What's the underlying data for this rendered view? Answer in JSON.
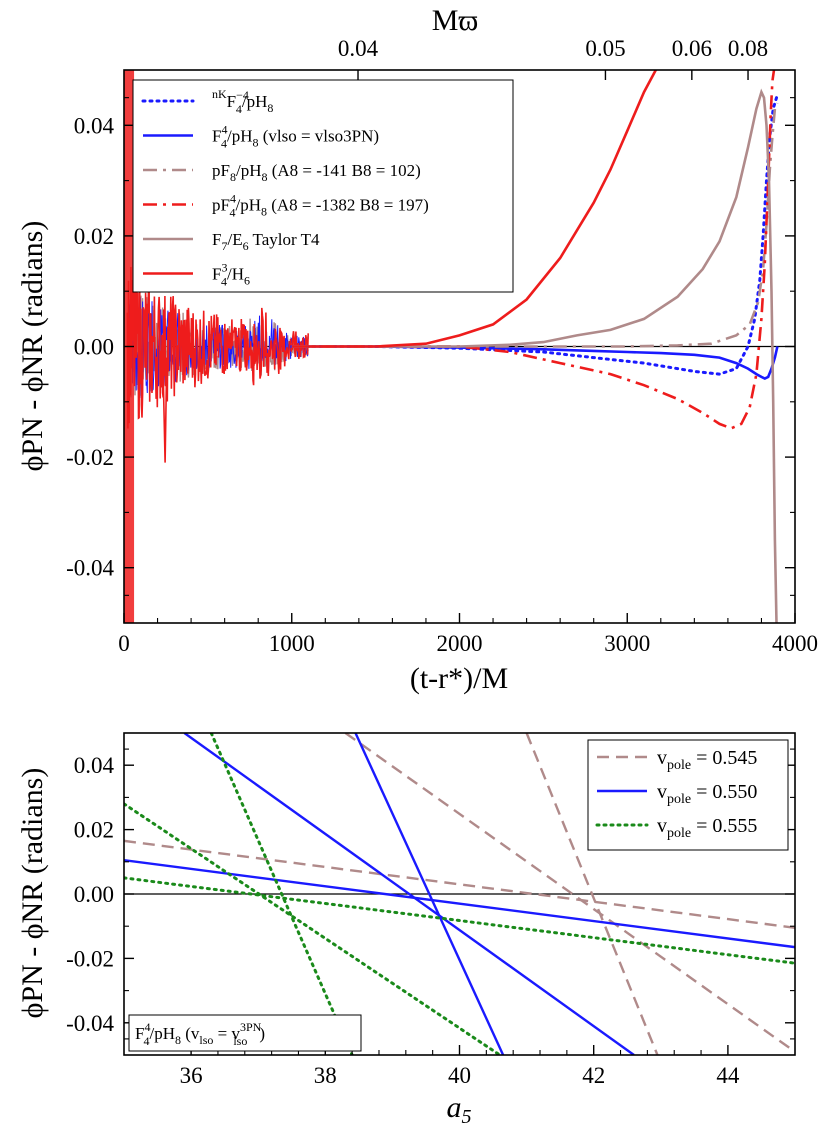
{
  "chart_data": [
    {
      "type": "line",
      "title": "",
      "xlabel": "(t-r*)/M",
      "ylabel": "ϕPN - ϕNR (radians)",
      "top_axis_label": "Mϖ",
      "top_ticks": [
        {
          "label": "0.04",
          "x": 1395
        },
        {
          "label": "0.05",
          "x": 2870
        },
        {
          "label": "0.06",
          "x": 3385
        },
        {
          "label": "0.08",
          "x": 3720
        }
      ],
      "xlim": [
        0,
        4000
      ],
      "ylim": [
        -0.05,
        0.05
      ],
      "xticks": [
        0,
        1000,
        2000,
        3000,
        4000
      ],
      "xtick_labels": [
        "0",
        "1000",
        "2000",
        "3000",
        "4000"
      ],
      "yticks": [
        -0.04,
        -0.02,
        0.0,
        0.02,
        0.04
      ],
      "ytick_labels": [
        "-0.04",
        "-0.02",
        "0.00",
        "0.02",
        "0.04"
      ],
      "legend_position": "top-left",
      "series": [
        {
          "name": "nK F̄4/pH8",
          "legend": {
            "pre_sup": "nK",
            "main": "F",
            "main_sup": "−4",
            "main_sub": "4",
            "tail": "/pH",
            "tail_sub": "8",
            "extra": ""
          },
          "color": "#1a1aff",
          "style": "dotted",
          "x": [
            1000,
            1500,
            2000,
            2500,
            2800,
            3100,
            3400,
            3550,
            3650,
            3720,
            3760,
            3790,
            3810,
            3830,
            3850,
            3870,
            3890
          ],
          "y": [
            0.0,
            0.0,
            -0.0003,
            -0.001,
            -0.002,
            -0.003,
            -0.0045,
            -0.005,
            -0.004,
            0.0,
            0.005,
            0.012,
            0.02,
            0.03,
            0.038,
            0.043,
            0.045
          ]
        },
        {
          "name": "F44/pH8 (vlso = vlso3PN)",
          "legend": {
            "pre_sup": "",
            "main": "F",
            "main_sup": "4",
            "main_sub": "4",
            "tail": "/pH",
            "tail_sub": "8",
            "extra": " (vlso = vlso3PN)"
          },
          "color": "#1a1aff",
          "style": "solid",
          "x": [
            1000,
            1500,
            2000,
            2500,
            2800,
            3000,
            3200,
            3400,
            3550,
            3650,
            3720,
            3770,
            3800,
            3820,
            3840,
            3860,
            3880,
            3895
          ],
          "y": [
            0.0,
            0.0,
            -0.0002,
            -0.0005,
            -0.0008,
            -0.001,
            -0.0012,
            -0.0015,
            -0.002,
            -0.003,
            -0.004,
            -0.005,
            -0.0055,
            -0.0058,
            -0.0055,
            -0.004,
            -0.002,
            0.0
          ]
        },
        {
          "name": "pF8/pH8 (A8 = -141 B8 = 102)",
          "legend": {
            "pre_sup": "",
            "main": "pF",
            "main_sup": "",
            "main_sub": "8",
            "tail": "/pH",
            "tail_sub": "8",
            "extra": " (A8 = -141 B8 = 102)"
          },
          "color": "#b08a8a",
          "style": "dashdot",
          "x": [
            1000,
            2000,
            2500,
            3000,
            3300,
            3500,
            3650,
            3730,
            3780,
            3810,
            3830,
            3850,
            3865,
            3880,
            3895
          ],
          "y": [
            0.0,
            0.0,
            0.0,
            0.0,
            0.0002,
            0.0005,
            0.002,
            0.004,
            0.008,
            0.014,
            0.022,
            0.032,
            0.038,
            0.043,
            0.044
          ]
        },
        {
          "name": "pF44/pH8 (A8 = -1382 B8 = 197)",
          "legend": {
            "pre_sup": "",
            "main": "pF",
            "main_sup": "4",
            "main_sub": "4",
            "tail": "/pH",
            "tail_sub": "8",
            "extra": " (A8 = -1382 B8 = 197)"
          },
          "color": "#ee1c1c",
          "style": "dashdot",
          "x": [
            1000,
            2000,
            2300,
            2600,
            2900,
            3100,
            3300,
            3450,
            3550,
            3620,
            3680,
            3730,
            3770,
            3800,
            3820,
            3840,
            3855,
            3865,
            3875
          ],
          "y": [
            0.0,
            0.0,
            -0.001,
            -0.003,
            -0.005,
            -0.007,
            -0.0095,
            -0.012,
            -0.014,
            -0.0148,
            -0.014,
            -0.011,
            -0.005,
            0.005,
            0.015,
            0.03,
            0.042,
            0.048,
            0.05
          ]
        },
        {
          "name": "F7/E6 Taylor T4",
          "legend": {
            "pre_sup": "",
            "main": "F",
            "main_sup": "",
            "main_sub": "7",
            "tail": "/E",
            "tail_sub": "6",
            "extra": " Taylor T4"
          },
          "color": "#b08a8a",
          "style": "solid",
          "x": [
            1000,
            2000,
            2300,
            2500,
            2700,
            2900,
            3100,
            3300,
            3450,
            3550,
            3650,
            3720,
            3770,
            3800,
            3815,
            3830,
            3845,
            3860,
            3870,
            3880,
            3890
          ],
          "y": [
            0.0,
            0.0,
            0.0003,
            0.0008,
            0.002,
            0.003,
            0.005,
            0.009,
            0.014,
            0.019,
            0.027,
            0.036,
            0.043,
            0.046,
            0.045,
            0.04,
            0.03,
            0.01,
            -0.01,
            -0.035,
            -0.05
          ]
        },
        {
          "name": "F43/H6",
          "legend": {
            "pre_sup": "",
            "main": "F",
            "main_sup": "3",
            "main_sub": "4",
            "tail": "/H",
            "tail_sub": "6",
            "extra": ""
          },
          "color": "#ee1c1c",
          "style": "solid",
          "x": [
            1000,
            1500,
            1800,
            2000,
            2200,
            2400,
            2600,
            2700,
            2800,
            2900,
            3000,
            3100,
            3170
          ],
          "y": [
            0.0,
            0.0,
            0.0005,
            0.002,
            0.004,
            0.0085,
            0.016,
            0.021,
            0.026,
            0.032,
            0.039,
            0.046,
            0.05
          ]
        }
      ]
    },
    {
      "type": "line",
      "title": "",
      "xlabel": "a5",
      "ylabel": "ϕPN - ϕNR (radians)",
      "xlim": [
        35,
        45
      ],
      "ylim": [
        -0.05,
        0.05
      ],
      "xticks": [
        36,
        38,
        40,
        42,
        44
      ],
      "xtick_labels": [
        "36",
        "38",
        "40",
        "42",
        "44"
      ],
      "yticks": [
        -0.04,
        -0.02,
        0.0,
        0.02,
        0.04
      ],
      "ytick_labels": [
        "-0.04",
        "-0.02",
        "0.00",
        "0.02",
        "0.04"
      ],
      "legend_position": "top-right",
      "annotation": "F44/pH8 (vlso = vlso3PN)",
      "series": [
        {
          "name": "vpole = 0.545",
          "legend_value": " = 0.545",
          "color": "#b08a8a",
          "style": "dashed",
          "lines": [
            {
              "x": [
                35,
                45
              ],
              "y": [
                0.0165,
                -0.0105
              ]
            },
            {
              "x": [
                38.3,
                45
              ],
              "y": [
                0.05,
                -0.049
              ]
            },
            {
              "x": [
                41.0,
                42.95
              ],
              "y": [
                0.05,
                -0.05
              ]
            }
          ]
        },
        {
          "name": "vpole = 0.550",
          "legend_value": " = 0.550",
          "color": "#1a1aff",
          "style": "solid",
          "lines": [
            {
              "x": [
                35,
                45
              ],
              "y": [
                0.0105,
                -0.0165
              ]
            },
            {
              "x": [
                35.9,
                42.6
              ],
              "y": [
                0.05,
                -0.05
              ]
            },
            {
              "x": [
                38.45,
                40.65
              ],
              "y": [
                0.05,
                -0.05
              ]
            }
          ]
        },
        {
          "name": "vpole = 0.555",
          "legend_value": " = 0.555",
          "color": "#1a8a1a",
          "style": "dotted",
          "lines": [
            {
              "x": [
                35,
                45
              ],
              "y": [
                0.005,
                -0.0215
              ]
            },
            {
              "x": [
                35,
                40.6
              ],
              "y": [
                0.028,
                -0.05
              ]
            },
            {
              "x": [
                36.3,
                38.4
              ],
              "y": [
                0.05,
                -0.05
              ]
            }
          ]
        }
      ]
    }
  ]
}
